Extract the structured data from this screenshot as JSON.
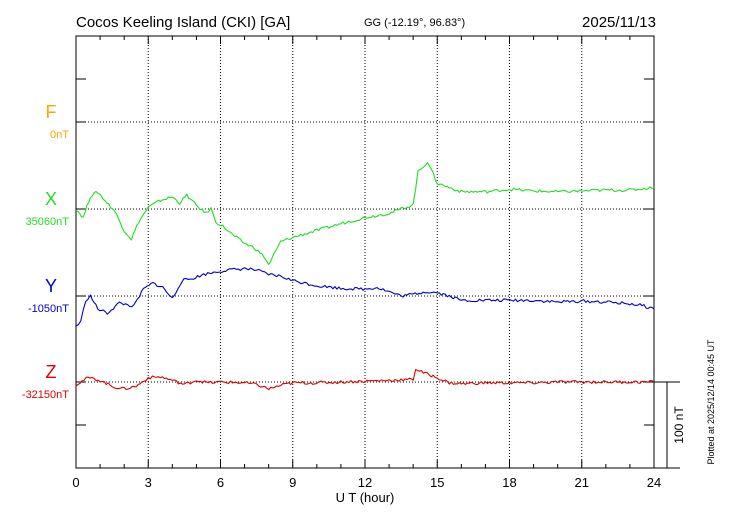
{
  "chart_data": {
    "type": "line",
    "title": "Cocos Keeling Island (CKI)  [GA]",
    "coords": "GG (-12.19°,  96.83°)",
    "date": "2025/11/13",
    "xlabel": "U T (hour)",
    "xlim": [
      0,
      24
    ],
    "xticks": [
      "0",
      "3",
      "6",
      "9",
      "12",
      "15",
      "18",
      "21",
      "24"
    ],
    "grid": true,
    "scale_label": "100 nT",
    "plotted_note": "Plotted at 2025/12/14 00:45 UT",
    "colors": {
      "F": "#f5a800",
      "X": "#22dd22",
      "Y": "#0000cc",
      "Z": "#dd0000"
    },
    "series": [
      {
        "name": "F",
        "baseline_label": "0nT",
        "points": []
      },
      {
        "name": "X",
        "baseline_label": "35060nT",
        "points": [
          [
            0,
            0
          ],
          [
            0.3,
            -10
          ],
          [
            0.6,
            15
          ],
          [
            0.9,
            20
          ],
          [
            1.2,
            10
          ],
          [
            1.6,
            -2
          ],
          [
            2.0,
            -25
          ],
          [
            2.3,
            -35
          ],
          [
            2.6,
            -15
          ],
          [
            3.0,
            2
          ],
          [
            3.5,
            10
          ],
          [
            4.0,
            14
          ],
          [
            4.3,
            7
          ],
          [
            4.6,
            16
          ],
          [
            5.0,
            4
          ],
          [
            5.4,
            -5
          ],
          [
            5.6,
            1
          ],
          [
            5.8,
            -15
          ],
          [
            6.1,
            -20
          ],
          [
            6.5,
            -30
          ],
          [
            7.0,
            -40
          ],
          [
            7.4,
            -45
          ],
          [
            7.8,
            -55
          ],
          [
            8.0,
            -65
          ],
          [
            8.5,
            -38
          ],
          [
            9.0,
            -33
          ],
          [
            10.0,
            -25
          ],
          [
            11.0,
            -17
          ],
          [
            12.0,
            -10
          ],
          [
            13.0,
            -5
          ],
          [
            14.0,
            5
          ],
          [
            14.2,
            43
          ],
          [
            14.6,
            55
          ],
          [
            15.0,
            30
          ],
          [
            15.5,
            25
          ],
          [
            16.0,
            20
          ],
          [
            17.0,
            20
          ],
          [
            18.0,
            23
          ],
          [
            19.0,
            21
          ],
          [
            20.0,
            20
          ],
          [
            21.0,
            21
          ],
          [
            22.0,
            22
          ],
          [
            23.0,
            22
          ],
          [
            24.0,
            25
          ]
        ]
      },
      {
        "name": "Y",
        "baseline_label": "-1050nT",
        "points": [
          [
            0,
            -35
          ],
          [
            0.2,
            -30
          ],
          [
            0.4,
            -5
          ],
          [
            0.6,
            0
          ],
          [
            0.9,
            -15
          ],
          [
            1.3,
            -20
          ],
          [
            1.8,
            -8
          ],
          [
            2.4,
            -12
          ],
          [
            2.8,
            8
          ],
          [
            3.2,
            15
          ],
          [
            3.6,
            10
          ],
          [
            4.0,
            -3
          ],
          [
            4.4,
            18
          ],
          [
            4.8,
            20
          ],
          [
            5.3,
            25
          ],
          [
            5.8,
            28
          ],
          [
            6.3,
            30
          ],
          [
            7.0,
            32
          ],
          [
            7.5,
            30
          ],
          [
            8.0,
            25
          ],
          [
            8.5,
            23
          ],
          [
            9.0,
            18
          ],
          [
            10.0,
            12
          ],
          [
            11.0,
            9
          ],
          [
            12.0,
            8
          ],
          [
            12.5,
            10
          ],
          [
            13.0,
            5
          ],
          [
            13.5,
            0
          ],
          [
            14.0,
            2
          ],
          [
            14.5,
            5
          ],
          [
            15.0,
            4
          ],
          [
            15.5,
            0
          ],
          [
            16.0,
            -5
          ],
          [
            17.0,
            -5
          ],
          [
            18.0,
            -5
          ],
          [
            19.0,
            -5
          ],
          [
            20.0,
            -7
          ],
          [
            21.0,
            -6
          ],
          [
            22.0,
            -7
          ],
          [
            23.0,
            -9
          ],
          [
            23.5,
            -11
          ],
          [
            24.0,
            -15
          ]
        ]
      },
      {
        "name": "Z",
        "baseline_label": "-32150nT",
        "points": [
          [
            0,
            -3
          ],
          [
            0.5,
            5
          ],
          [
            1.0,
            2
          ],
          [
            1.5,
            -5
          ],
          [
            2.0,
            -8
          ],
          [
            2.5,
            -5
          ],
          [
            3.0,
            5
          ],
          [
            3.5,
            6
          ],
          [
            4.0,
            2
          ],
          [
            4.5,
            -3
          ],
          [
            5.0,
            2
          ],
          [
            5.5,
            -1
          ],
          [
            6.0,
            0
          ],
          [
            7.0,
            -1
          ],
          [
            7.5,
            -3
          ],
          [
            8.0,
            -8
          ],
          [
            8.5,
            -4
          ],
          [
            9.0,
            -1
          ],
          [
            10.0,
            -1
          ],
          [
            11.0,
            0
          ],
          [
            12.0,
            1
          ],
          [
            13.0,
            2
          ],
          [
            14.0,
            3
          ],
          [
            14.1,
            15
          ],
          [
            14.5,
            10
          ],
          [
            15.0,
            5
          ],
          [
            15.5,
            -1
          ],
          [
            16.0,
            -2
          ],
          [
            17.0,
            -1
          ],
          [
            18.0,
            -1
          ],
          [
            19.0,
            -1
          ],
          [
            20.0,
            0
          ],
          [
            21.0,
            0
          ],
          [
            22.0,
            0
          ],
          [
            23.0,
            0
          ],
          [
            24.0,
            0
          ]
        ]
      }
    ]
  }
}
